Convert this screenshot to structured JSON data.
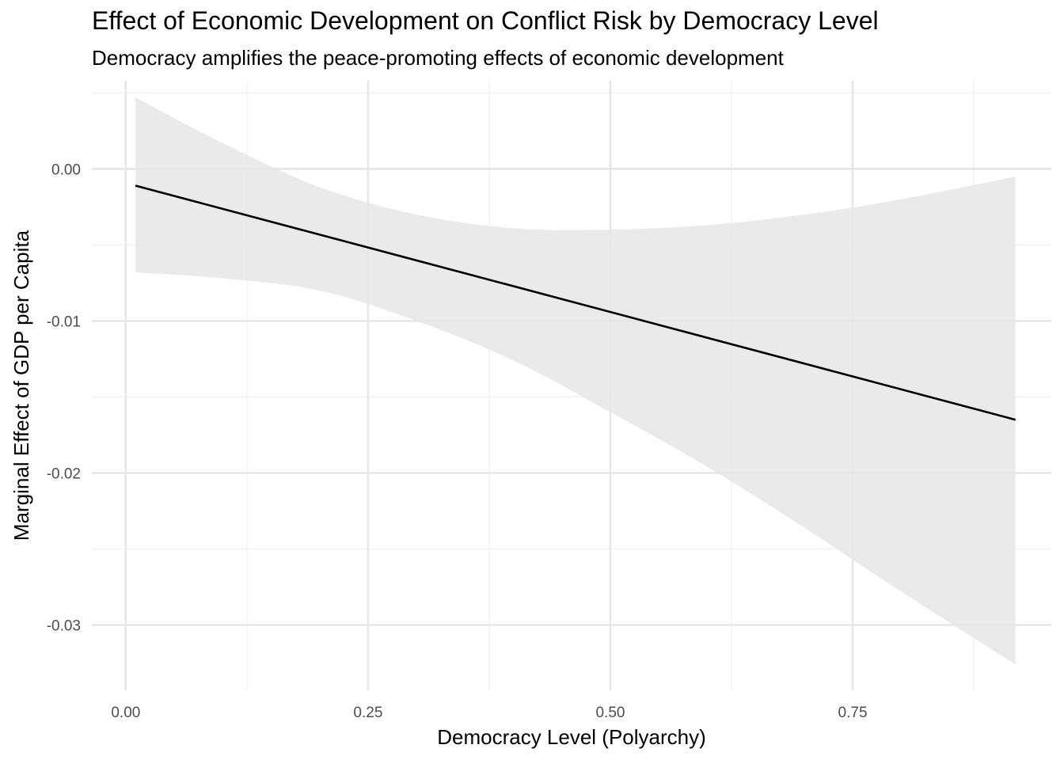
{
  "chart_data": {
    "type": "line",
    "title": "Effect of Economic Development on Conflict Risk by Democracy Level",
    "subtitle": "Democracy amplifies the peace-promoting effects of economic development",
    "xlabel": "Democracy Level (Polyarchy)",
    "ylabel": "Marginal Effect of GDP per Capita",
    "xlim": [
      -0.035,
      0.955
    ],
    "ylim": [
      -0.0343,
      0.0058
    ],
    "x_ticks": [
      "0.00",
      "0.25",
      "0.50",
      "0.75"
    ],
    "x_tick_values": [
      0.0,
      0.25,
      0.5,
      0.75
    ],
    "y_ticks": [
      "0.00",
      "-0.01",
      "-0.02",
      "-0.03"
    ],
    "y_tick_values": [
      0.0,
      -0.01,
      -0.02,
      -0.03
    ],
    "grid": true,
    "legend": "none",
    "colors": {
      "line": "#000000",
      "ribbon": "#e6e6e6",
      "grid_major": "#e5e5e5",
      "grid_minor": "#f0f0f0"
    },
    "series": [
      {
        "x": [
          0.01,
          0.918
        ],
        "values": [
          -0.0011,
          -0.0165
        ]
      }
    ],
    "confidence_band": {
      "x": [
        0.01,
        0.1,
        0.2,
        0.3,
        0.4,
        0.5,
        0.6,
        0.7,
        0.8,
        0.918
      ],
      "upper": [
        0.0047,
        0.0017,
        -0.0012,
        -0.003,
        -0.0039,
        -0.004,
        -0.0037,
        -0.003,
        -0.002,
        -0.0005
      ],
      "lower": [
        -0.0068,
        -0.0072,
        -0.008,
        -0.01,
        -0.0126,
        -0.016,
        -0.0196,
        -0.0236,
        -0.0278,
        -0.0326
      ]
    }
  }
}
